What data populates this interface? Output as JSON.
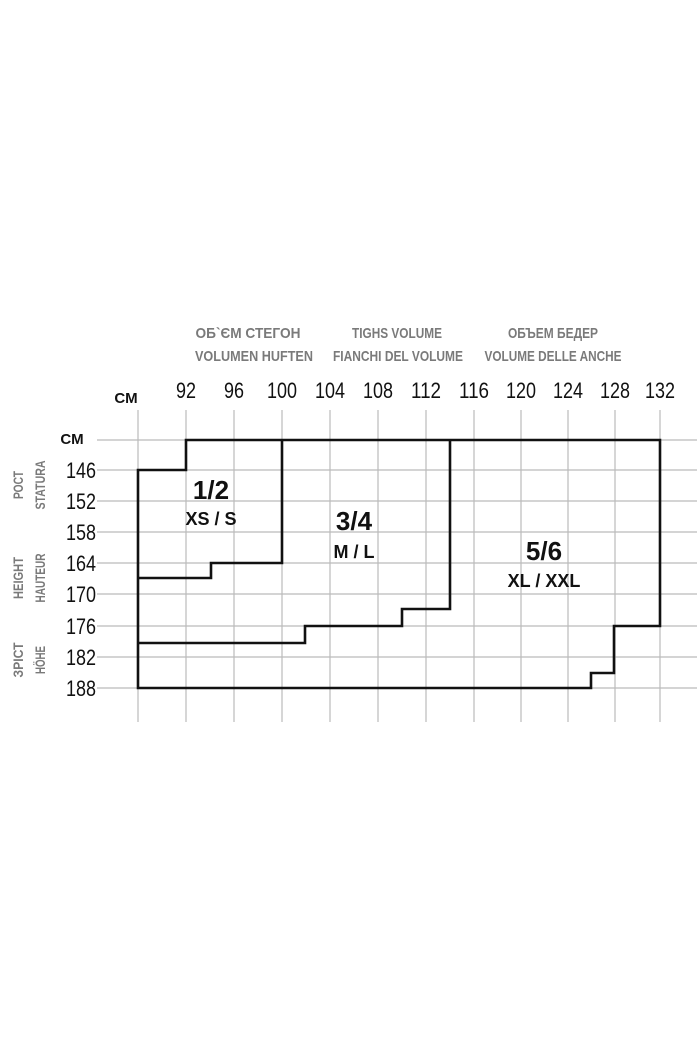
{
  "header": {
    "col1": [
      "ОБ`ЄМ СТЕГОН",
      "VOLUMEN HUFTEN"
    ],
    "col2": [
      "TIGHS VOLUME",
      "FIANCHI DEL VOLUME"
    ],
    "col3": [
      "ОБЪЕМ БЕДЕР",
      "VOLUME DELLE ANCHE"
    ]
  },
  "x_unit": "CM",
  "y_unit": "CM",
  "hip_ticks": [
    "92",
    "96",
    "100",
    "104",
    "108",
    "112",
    "116",
    "120",
    "124",
    "128",
    "132"
  ],
  "height_ticks": [
    "146",
    "152",
    "158",
    "164",
    "170",
    "176",
    "182",
    "188"
  ],
  "side_labels": [
    [
      "РОСТ",
      "STATURA"
    ],
    [
      "HEIGHT",
      "HAUTEUR"
    ],
    [
      "ЗРІСТ",
      "HÖHE"
    ]
  ],
  "sizes": [
    {
      "num": "1/2",
      "label": "XS / S"
    },
    {
      "num": "3/4",
      "label": "M / L"
    },
    {
      "num": "5/6",
      "label": "XL / XXL"
    }
  ],
  "colors": {
    "outline": "#111111",
    "grid": "#bbbbbb",
    "header_text": "#7a7a7a"
  }
}
